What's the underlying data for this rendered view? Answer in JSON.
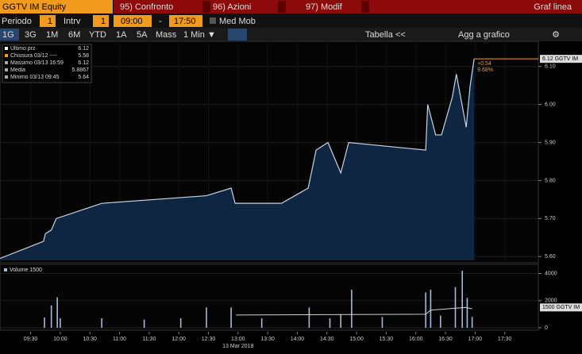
{
  "toolbar": {
    "ticker": "GGTV IM Equity",
    "menus": [
      "95) Confronto",
      "96) Azioni",
      "97) Modif"
    ],
    "chart_type": "Graf linea",
    "period_label": "Periodo",
    "period": "1",
    "interval_label": "Intrv",
    "interval": "1",
    "start": "09:00",
    "dash": "-",
    "end": "17:50",
    "moving_avg": "Med Mob",
    "ranges": [
      "1G",
      "3G",
      "1M",
      "6M",
      "YTD",
      "1A",
      "5A",
      "Mass"
    ],
    "freq": "1 Min ▼",
    "table": "Tabella",
    "back": "<<",
    "add": "Agg a grafico"
  },
  "chart_data": [
    {
      "type": "line",
      "legend": [
        {
          "label": "Ultimo prz",
          "value": "6.12"
        },
        {
          "label": "Chiusura 03/12 ----",
          "value": "5.58"
        },
        {
          "label": "Massimo 03/13 16:59",
          "value": "6.12"
        },
        {
          "label": "Media",
          "value": "5.8867"
        },
        {
          "label": "Minimo 03/13 09:45",
          "value": "5.64"
        }
      ],
      "annotations": [
        "+0.54",
        "9.68%",
        "6.12 GGTV IM"
      ],
      "date_label": "13 Mar 2018",
      "last": 6.12,
      "x": [
        539,
        583,
        585,
        591,
        596,
        642,
        748,
        773,
        777,
        824,
        851,
        859,
        871,
        884,
        892,
        970,
        972,
        980,
        986,
        997,
        1001,
        1011,
        1015,
        1019
      ],
      "series": [
        {
          "name": "Ultimo prz",
          "color": "#c8d4e4",
          "values": [
            5.595,
            5.64,
            5.66,
            5.67,
            5.7,
            5.74,
            5.76,
            5.78,
            5.74,
            5.74,
            5.78,
            5.88,
            5.9,
            5.82,
            5.9,
            5.88,
            6.0,
            5.92,
            5.92,
            6.02,
            6.08,
            5.94,
            6.05,
            6.12
          ]
        }
      ],
      "xlim": [
        539,
        1084
      ],
      "ylim": [
        5.59,
        6.16
      ],
      "yticks": [
        {
          "value": 5.6,
          "label": "5.60"
        },
        {
          "value": 5.7,
          "label": "5.70"
        },
        {
          "value": 5.8,
          "label": "5.80"
        },
        {
          "value": 5.9,
          "label": "5.90"
        },
        {
          "value": 6.0,
          "label": "6.00"
        },
        {
          "value": 6.1,
          "label": "6.10"
        }
      ],
      "xticks": [
        {
          "value": 570,
          "label": "09:30"
        },
        {
          "value": 600,
          "label": "10:00"
        },
        {
          "value": 630,
          "label": "10:30"
        },
        {
          "value": 660,
          "label": "11:00"
        },
        {
          "value": 690,
          "label": "11:30"
        },
        {
          "value": 720,
          "label": "12:00"
        },
        {
          "value": 750,
          "label": "12:30"
        },
        {
          "value": 780,
          "label": "13:00"
        },
        {
          "value": 810,
          "label": "13:30"
        },
        {
          "value": 840,
          "label": "14:00"
        },
        {
          "value": 870,
          "label": "14:30"
        },
        {
          "value": 900,
          "label": "15:00"
        },
        {
          "value": 930,
          "label": "15:30"
        },
        {
          "value": 960,
          "label": "16:00"
        },
        {
          "value": 990,
          "label": "16:30"
        },
        {
          "value": 1020,
          "label": "17:00"
        },
        {
          "value": 1050,
          "label": "17:30"
        }
      ],
      "grid": true
    },
    {
      "type": "bar",
      "legend_label": "Volume 1500",
      "annotation": "1500 GGTV IM",
      "x": [
        584,
        591,
        597,
        600,
        642,
        685,
        722,
        748,
        773,
        804,
        852,
        873,
        884,
        895,
        926,
        970,
        975,
        985,
        1000,
        1007,
        1012,
        1017
      ],
      "values": [
        760,
        1650,
        2240,
        700,
        700,
        600,
        700,
        1500,
        1500,
        700,
        1500,
        700,
        1000,
        2800,
        800,
        2600,
        2800,
        900,
        3000,
        4200,
        2200,
        800
      ],
      "color": "#a8b8d8",
      "avg": {
        "x": [
          778,
          970,
          975,
          1010,
          1017
        ],
        "values": [
          940,
          1000,
          1300,
          1500,
          1400
        ],
        "color": "#d0d0d0"
      },
      "xlim": [
        539,
        1084
      ],
      "ylim": [
        0,
        4500
      ],
      "yticks": [
        0,
        2000,
        4000
      ]
    }
  ]
}
